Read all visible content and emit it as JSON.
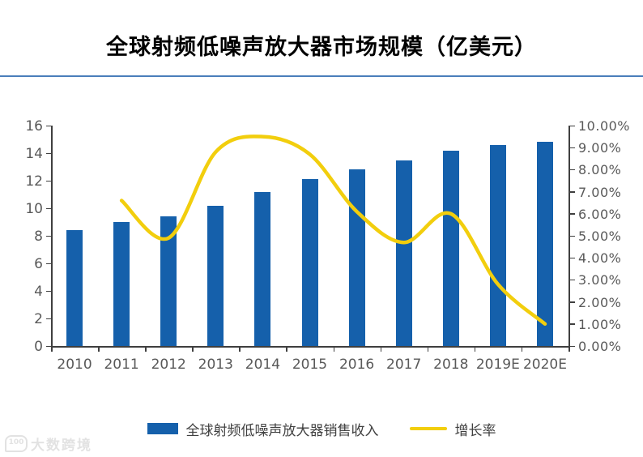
{
  "title": "全球射频低噪声放大器市场规模（亿美元）",
  "watermark": {
    "logo_text": "100",
    "text": "大数跨境"
  },
  "colors": {
    "bar": "#1560AB",
    "line": "#F2CE0D",
    "axis_line": "#3F3F3F",
    "axis_text": "#595959",
    "title_rule": "#4A7EBB"
  },
  "chart_data": {
    "type": "bar",
    "categories": [
      "2010",
      "2011",
      "2012",
      "2013",
      "2014",
      "2015",
      "2016",
      "2017",
      "2018",
      "2019E",
      "2020E"
    ],
    "series": [
      {
        "name": "全球射频低噪声放大器销售收入",
        "type": "bar",
        "axis": "left",
        "values": [
          8.4,
          9.0,
          9.4,
          10.2,
          11.2,
          12.1,
          12.8,
          13.5,
          14.2,
          14.6,
          14.8
        ]
      },
      {
        "name": "增长率",
        "type": "line",
        "axis": "right",
        "values": [
          null,
          6.6,
          4.9,
          8.8,
          9.5,
          8.7,
          6.1,
          4.7,
          6.0,
          2.8,
          1.0
        ]
      }
    ],
    "title": "全球射频低噪声放大器市场规模（亿美元）",
    "xlabel": "",
    "ylabel_left": "",
    "ylabel_right": "",
    "left_axis": {
      "min": 0,
      "max": 16,
      "step": 2,
      "ticks": [
        "0",
        "2",
        "4",
        "6",
        "8",
        "10",
        "12",
        "14",
        "16"
      ]
    },
    "right_axis": {
      "min": 0,
      "max": 10,
      "step": 1,
      "ticks": [
        "0.00%",
        "1.00%",
        "2.00%",
        "3.00%",
        "4.00%",
        "5.00%",
        "6.00%",
        "7.00%",
        "8.00%",
        "9.00%",
        "10.00%"
      ]
    },
    "grid": false,
    "legend_position": "bottom"
  },
  "legend": {
    "bar_label": "全球射频低噪声放大器销售收入",
    "line_label": "增长率"
  }
}
